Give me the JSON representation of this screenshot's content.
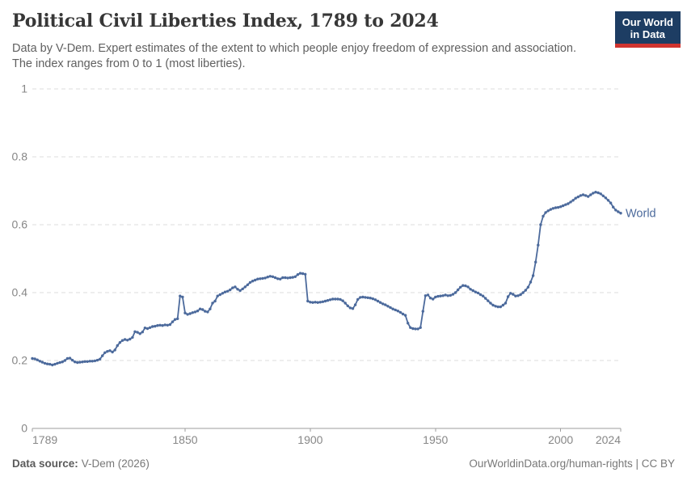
{
  "header": {
    "title": "Political Civil Liberties Index, 1789 to 2024",
    "subtitle_lines": [
      "Data by V-Dem. Expert estimates of the extent to which people enjoy freedom of expression and association.",
      "The index ranges from 0 to 1 (most liberties)."
    ],
    "logo_lines": [
      "Our World",
      "in Data"
    ]
  },
  "colors": {
    "series_blue": "#4c6a9c",
    "grid_gray": "#dcdcdc",
    "axis_gray": "#9e9e9e",
    "tick_text_gray": "#878787",
    "logo_navy": "#1d3d63",
    "logo_red": "#d0342f"
  },
  "chart_data": {
    "type": "line",
    "title": "Political Civil Liberties Index, 1789 to 2024",
    "xlabel": "",
    "ylabel": "",
    "x_range": [
      1789,
      2024
    ],
    "ylim": [
      0,
      1
    ],
    "grid": "horizontal-dashed",
    "legend_position": "end-of-line-label",
    "yticks": [
      {
        "value": 0,
        "label": "0"
      },
      {
        "value": 0.2,
        "label": "0.2"
      },
      {
        "value": 0.4,
        "label": "0.4"
      },
      {
        "value": 0.6,
        "label": "0.6"
      },
      {
        "value": 0.8,
        "label": "0.8"
      },
      {
        "value": 1,
        "label": "1"
      }
    ],
    "xticks": [
      {
        "value": 1789,
        "label": "1789"
      },
      {
        "value": 1850,
        "label": "1850"
      },
      {
        "value": 1900,
        "label": "1900"
      },
      {
        "value": 1950,
        "label": "1950"
      },
      {
        "value": 2000,
        "label": "2000"
      },
      {
        "value": 2024,
        "label": "2024"
      }
    ],
    "series": [
      {
        "name": "World",
        "color": "#4c6a9c",
        "start_year": 1789,
        "values": [
          0.206,
          0.205,
          0.202,
          0.198,
          0.195,
          0.192,
          0.19,
          0.189,
          0.187,
          0.189,
          0.192,
          0.194,
          0.196,
          0.2,
          0.206,
          0.207,
          0.201,
          0.196,
          0.194,
          0.195,
          0.196,
          0.197,
          0.197,
          0.198,
          0.198,
          0.199,
          0.201,
          0.204,
          0.214,
          0.223,
          0.227,
          0.229,
          0.225,
          0.231,
          0.244,
          0.253,
          0.259,
          0.262,
          0.26,
          0.263,
          0.268,
          0.285,
          0.283,
          0.279,
          0.284,
          0.296,
          0.294,
          0.297,
          0.3,
          0.301,
          0.303,
          0.304,
          0.303,
          0.305,
          0.304,
          0.306,
          0.314,
          0.321,
          0.323,
          0.39,
          0.387,
          0.34,
          0.336,
          0.338,
          0.341,
          0.343,
          0.346,
          0.352,
          0.35,
          0.345,
          0.343,
          0.352,
          0.369,
          0.375,
          0.39,
          0.394,
          0.398,
          0.402,
          0.404,
          0.408,
          0.414,
          0.417,
          0.41,
          0.406,
          0.411,
          0.417,
          0.423,
          0.43,
          0.434,
          0.437,
          0.44,
          0.441,
          0.442,
          0.443,
          0.446,
          0.448,
          0.447,
          0.444,
          0.441,
          0.44,
          0.444,
          0.444,
          0.443,
          0.444,
          0.445,
          0.447,
          0.453,
          0.457,
          0.456,
          0.454,
          0.375,
          0.372,
          0.371,
          0.372,
          0.371,
          0.372,
          0.373,
          0.375,
          0.377,
          0.379,
          0.381,
          0.381,
          0.381,
          0.38,
          0.376,
          0.369,
          0.361,
          0.355,
          0.353,
          0.364,
          0.38,
          0.386,
          0.387,
          0.386,
          0.385,
          0.384,
          0.382,
          0.379,
          0.375,
          0.371,
          0.367,
          0.364,
          0.36,
          0.356,
          0.352,
          0.349,
          0.346,
          0.342,
          0.337,
          0.333,
          0.31,
          0.297,
          0.294,
          0.293,
          0.293,
          0.297,
          0.345,
          0.391,
          0.393,
          0.384,
          0.381,
          0.387,
          0.389,
          0.39,
          0.391,
          0.393,
          0.391,
          0.392,
          0.395,
          0.4,
          0.408,
          0.416,
          0.421,
          0.42,
          0.417,
          0.41,
          0.406,
          0.402,
          0.399,
          0.394,
          0.39,
          0.383,
          0.376,
          0.369,
          0.363,
          0.36,
          0.358,
          0.358,
          0.363,
          0.369,
          0.388,
          0.398,
          0.395,
          0.39,
          0.391,
          0.394,
          0.4,
          0.407,
          0.416,
          0.431,
          0.45,
          0.49,
          0.54,
          0.6,
          0.625,
          0.636,
          0.641,
          0.645,
          0.648,
          0.65,
          0.651,
          0.653,
          0.656,
          0.659,
          0.662,
          0.667,
          0.672,
          0.678,
          0.682,
          0.686,
          0.688,
          0.686,
          0.683,
          0.688,
          0.693,
          0.696,
          0.694,
          0.691,
          0.685,
          0.679,
          0.672,
          0.664,
          0.652,
          0.643,
          0.638,
          0.634
        ]
      }
    ]
  },
  "footer": {
    "data_source_label": "Data source:",
    "data_source_value": "V-Dem (2026)",
    "link_text": "OurWorldinData.org/human-rights | CC BY"
  }
}
